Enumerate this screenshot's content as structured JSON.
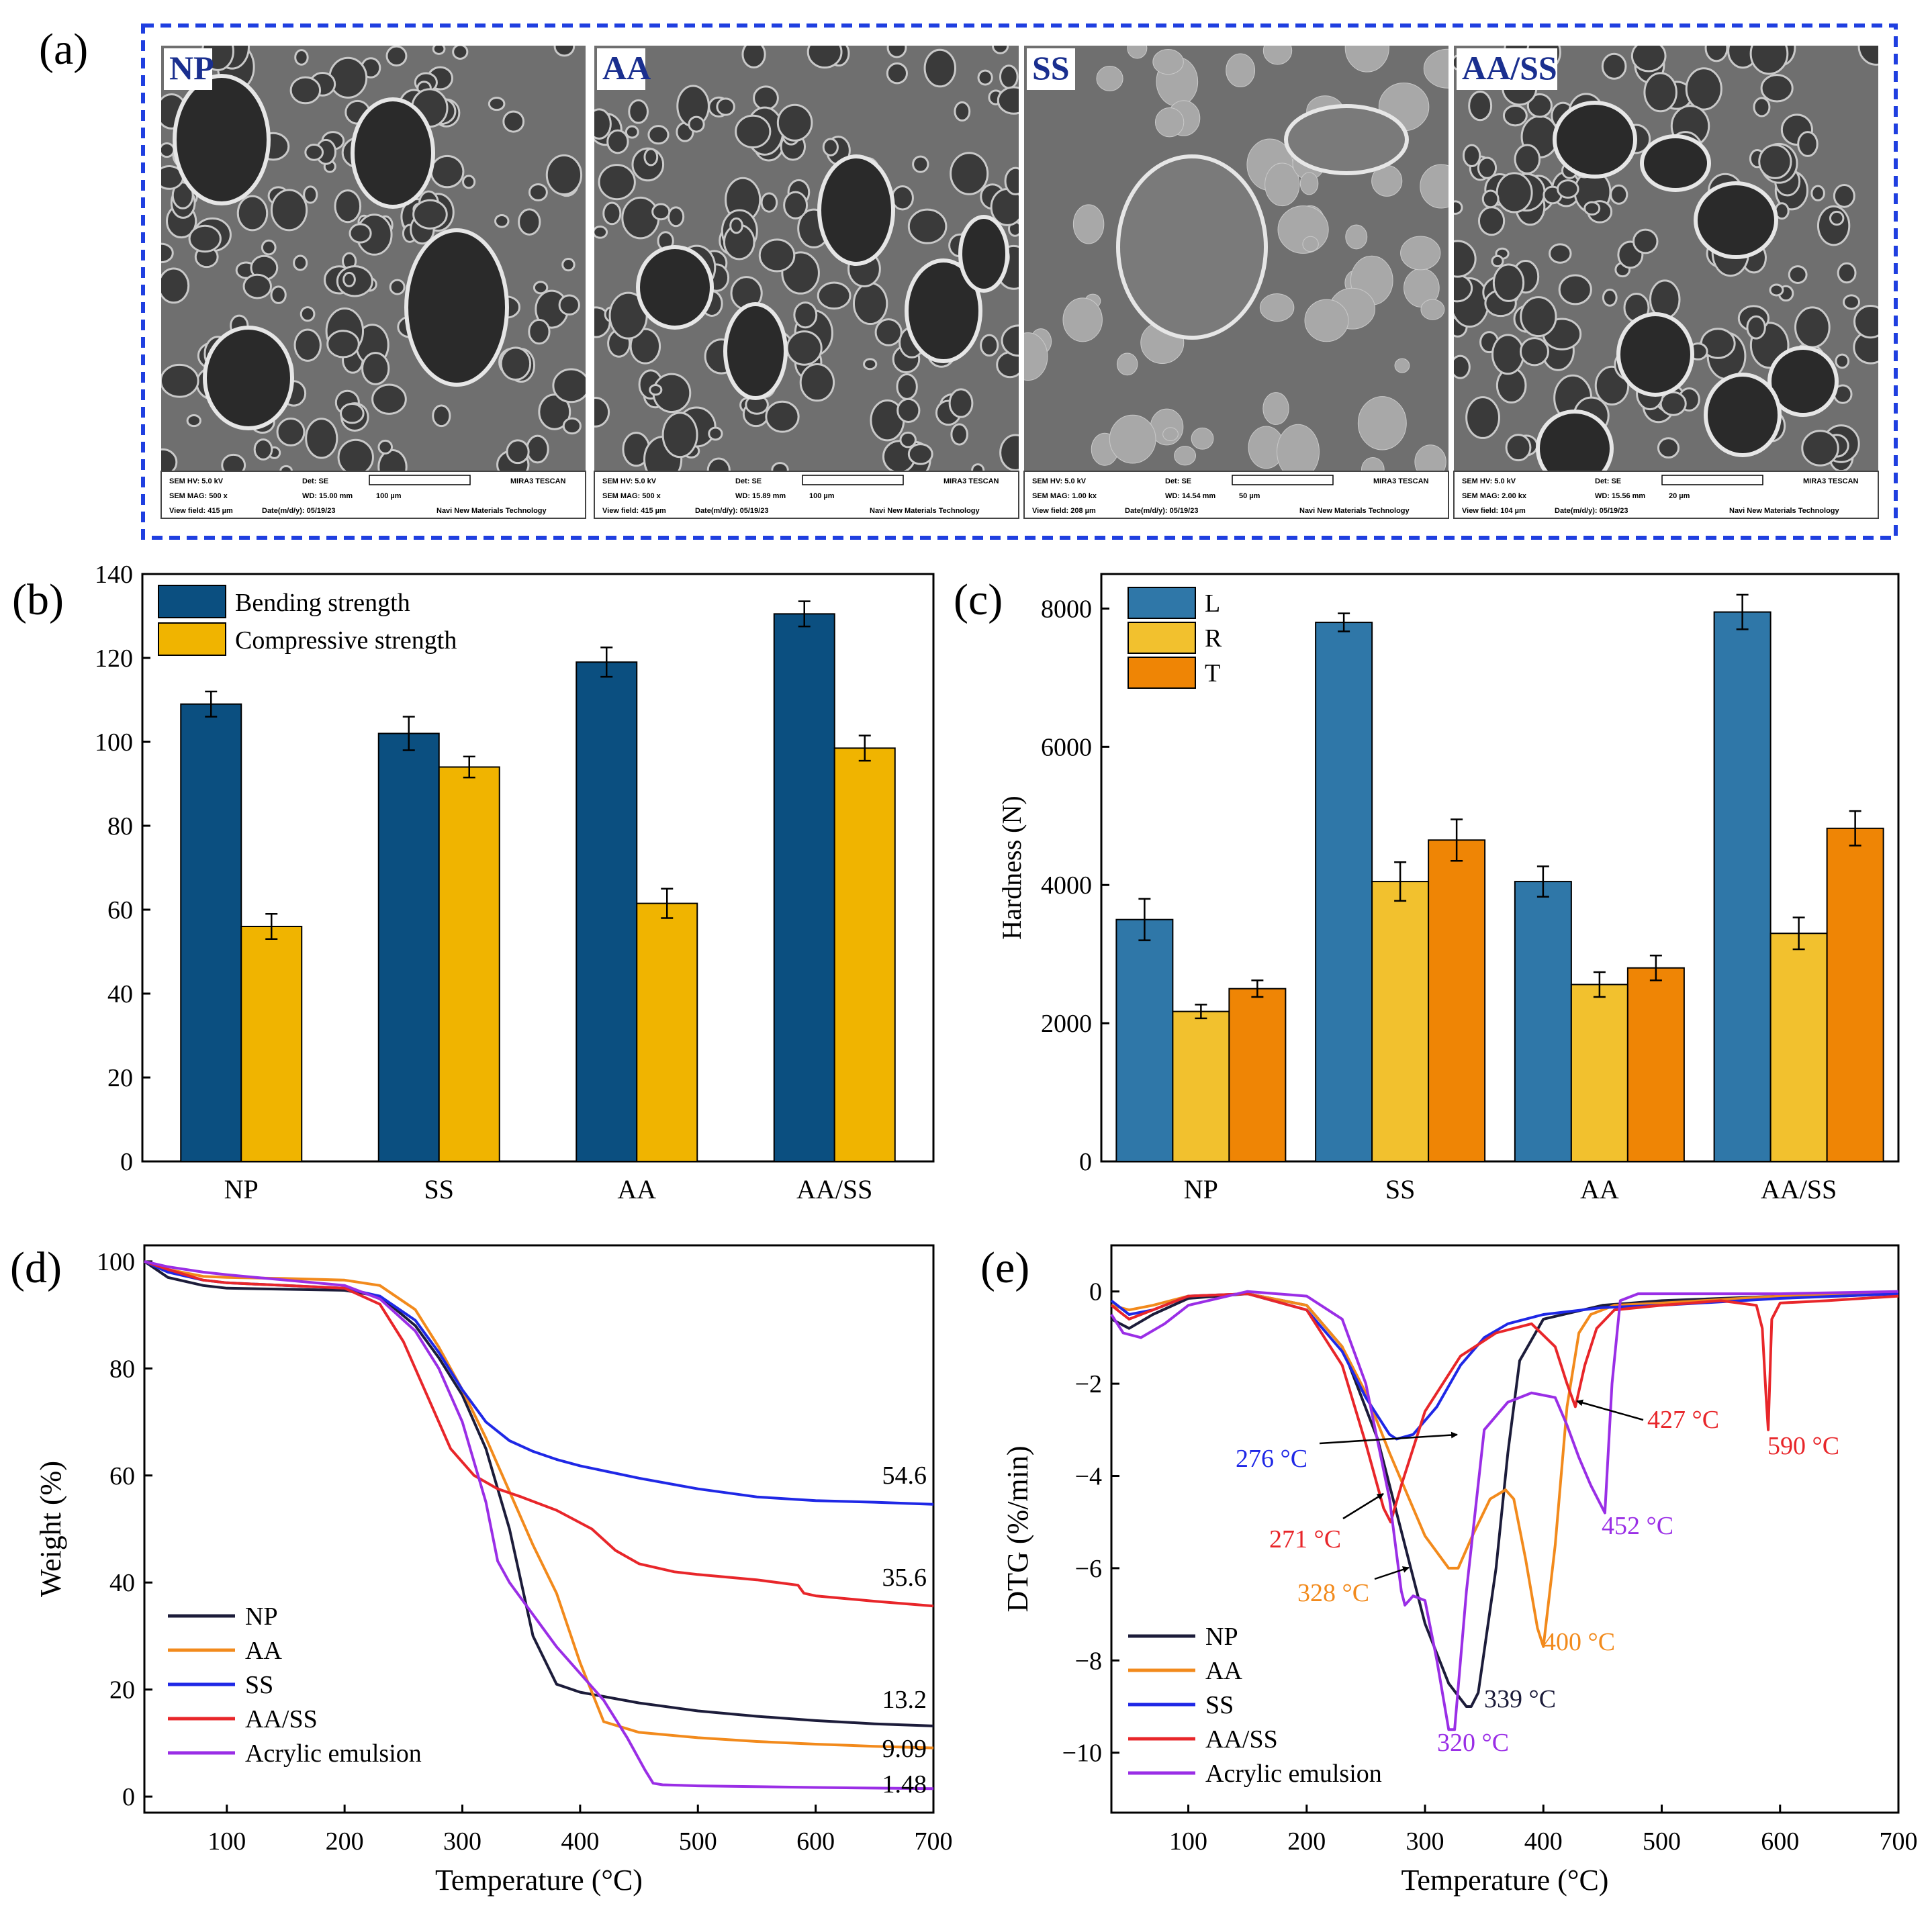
{
  "panel_labels": [
    "(a)",
    "(b)",
    "(c)",
    "(d)",
    "(e)"
  ],
  "colors": {
    "border_blue": "#1f3fe0",
    "sem_tag": "#1a2f8f",
    "bending": "#0b4f80",
    "compressive": "#f0b400",
    "L": "#2f77a8",
    "R": "#f2c12e",
    "T": "#ef8505",
    "NP": "#1c1c3a",
    "AA": "#f28a1c",
    "SS": "#1f28e6",
    "AA/SS": "#e8262a",
    "Acrylic emulsion": "#9a2ee6"
  },
  "sem_panels": [
    {
      "label": "NP",
      "hv": "SEM HV: 5.0 kV",
      "det": "Det: SE",
      "mag": "SEM MAG: 500 x",
      "wd": "WD: 15.00 mm",
      "scale": "100 µm",
      "field": "View field: 415 µm",
      "date": "Date(m/d/y): 05/19/23",
      "brand": "MIRA3 TESCAN",
      "company": "Navi New Materials Technology"
    },
    {
      "label": "AA",
      "hv": "SEM HV: 5.0 kV",
      "det": "Det: SE",
      "mag": "SEM MAG: 500 x",
      "wd": "WD: 15.89 mm",
      "scale": "100 µm",
      "field": "View field: 415 µm",
      "date": "Date(m/d/y): 05/19/23",
      "brand": "MIRA3 TESCAN",
      "company": "Navi New Materials Technology"
    },
    {
      "label": "SS",
      "hv": "SEM HV: 5.0 kV",
      "det": "Det: SE",
      "mag": "SEM MAG: 1.00 kx",
      "wd": "WD: 14.54 mm",
      "scale": "50 µm",
      "field": "View field: 208 µm",
      "date": "Date(m/d/y): 05/19/23",
      "brand": "MIRA3 TESCAN",
      "company": "Navi New Materials Technology"
    },
    {
      "label": "AA/SS",
      "hv": "SEM HV: 5.0 kV",
      "det": "Det: SE",
      "mag": "SEM MAG: 2.00 kx",
      "wd": "WD: 15.56 mm",
      "scale": "20 µm",
      "field": "View field: 104 µm",
      "date": "Date(m/d/y): 05/19/23",
      "brand": "MIRA3 TESCAN",
      "company": "Navi New Materials Technology"
    }
  ],
  "chart_data": [
    {
      "id": "b",
      "type": "bar",
      "categories": [
        "NP",
        "SS",
        "AA",
        "AA/SS"
      ],
      "series": [
        {
          "name": "Bending strength",
          "values": [
            109,
            102,
            119,
            130.5
          ],
          "errors": [
            3,
            4,
            3.5,
            3
          ]
        },
        {
          "name": "Compressive strength",
          "values": [
            56,
            94,
            61.5,
            98.5
          ],
          "errors": [
            3,
            2.5,
            3.5,
            3
          ]
        }
      ],
      "ylim": [
        0,
        140
      ],
      "yticks": [
        "0",
        "20",
        "40",
        "60",
        "80",
        "100",
        "120",
        "140"
      ],
      "xlabel": "",
      "ylabel": "",
      "legend": "top-left"
    },
    {
      "id": "c",
      "type": "bar",
      "categories": [
        "NP",
        "SS",
        "AA",
        "AA/SS"
      ],
      "series": [
        {
          "name": "L",
          "values": [
            3500,
            7800,
            4050,
            7950
          ],
          "errors": [
            300,
            130,
            220,
            250
          ]
        },
        {
          "name": "R",
          "values": [
            2170,
            4050,
            2560,
            3300
          ],
          "errors": [
            100,
            280,
            180,
            230
          ]
        },
        {
          "name": "T",
          "values": [
            2500,
            4650,
            2800,
            4820
          ],
          "errors": [
            120,
            300,
            180,
            250
          ]
        }
      ],
      "ylim": [
        0,
        8500
      ],
      "yticks": [
        "0",
        "2000",
        "4000",
        "6000",
        "8000"
      ],
      "xlabel": "",
      "ylabel": "Hardness (N)",
      "legend": "top-left"
    },
    {
      "id": "d",
      "type": "line",
      "xlabel": "Temperature (°C)",
      "ylabel": "Weight (%)",
      "xlim": [
        30,
        700
      ],
      "ylim": [
        -3,
        103
      ],
      "xticks": [
        "100",
        "200",
        "300",
        "400",
        "500",
        "600",
        "700"
      ],
      "yticks": [
        "0",
        "20",
        "40",
        "60",
        "80",
        "100"
      ],
      "legend": "bottom-left",
      "series": [
        {
          "name": "NP",
          "x": [
            30,
            50,
            80,
            100,
            150,
            200,
            230,
            260,
            280,
            300,
            320,
            340,
            360,
            380,
            400,
            450,
            500,
            550,
            600,
            650,
            700
          ],
          "y": [
            100,
            97,
            95.5,
            95,
            94.8,
            94.6,
            93.5,
            88,
            82,
            75,
            65,
            50,
            30,
            21,
            19.5,
            17.5,
            16,
            15,
            14.2,
            13.6,
            13.2
          ]
        },
        {
          "name": "AA",
          "x": [
            30,
            50,
            80,
            100,
            150,
            200,
            230,
            260,
            280,
            300,
            320,
            340,
            360,
            380,
            400,
            420,
            450,
            500,
            550,
            600,
            650,
            700
          ],
          "y": [
            100,
            98.5,
            97.2,
            97,
            96.8,
            96.5,
            95.5,
            91,
            84,
            76,
            67,
            57,
            47,
            38,
            25,
            14,
            12,
            11,
            10.3,
            9.8,
            9.4,
            9.09
          ]
        },
        {
          "name": "SS",
          "x": [
            30,
            50,
            80,
            100,
            150,
            200,
            230,
            260,
            280,
            300,
            320,
            340,
            360,
            380,
            400,
            450,
            500,
            550,
            600,
            650,
            700
          ],
          "y": [
            100,
            98,
            96.5,
            96,
            95.5,
            95,
            93.5,
            89,
            83,
            76,
            70,
            66.5,
            64.5,
            63,
            61.8,
            59.5,
            57.5,
            56,
            55.3,
            55,
            54.6
          ]
        },
        {
          "name": "AA/SS",
          "x": [
            30,
            50,
            80,
            100,
            150,
            200,
            230,
            250,
            270,
            290,
            310,
            330,
            350,
            380,
            410,
            430,
            450,
            480,
            500,
            550,
            585,
            590,
            600,
            650,
            700
          ],
          "y": [
            100,
            98.5,
            96.5,
            96,
            95.5,
            95,
            92,
            85,
            75,
            65,
            60,
            57.5,
            56,
            53.5,
            50,
            46,
            43.5,
            42,
            41.5,
            40.5,
            39.5,
            38,
            37.5,
            36.5,
            35.6
          ]
        },
        {
          "name": "Acrylic emulsion",
          "x": [
            30,
            50,
            80,
            100,
            150,
            200,
            230,
            260,
            280,
            300,
            320,
            330,
            340,
            360,
            380,
            400,
            420,
            440,
            455,
            462,
            470,
            500,
            600,
            700
          ],
          "y": [
            100,
            99,
            98,
            97.5,
            96.5,
            95.5,
            93,
            87,
            80,
            70,
            55,
            44,
            40,
            34,
            28,
            23,
            18,
            11,
            5,
            2.5,
            2.2,
            2,
            1.7,
            1.48
          ]
        }
      ],
      "end_labels": [
        "54.6",
        "35.6",
        "13.2",
        "9.09",
        "1.48"
      ]
    },
    {
      "id": "e",
      "type": "line",
      "xlabel": "Temperature (°C)",
      "ylabel": "DTG (%/min)",
      "xlim": [
        35,
        700
      ],
      "ylim": [
        -11.3,
        1.0
      ],
      "xticks": [
        "100",
        "200",
        "300",
        "400",
        "500",
        "600",
        "700"
      ],
      "yticks": [
        "0",
        "-2",
        "-4",
        "-6",
        "-8",
        "-10"
      ],
      "legend": "bottom-left",
      "series": [
        {
          "name": "NP",
          "x": [
            35,
            50,
            70,
            100,
            150,
            200,
            230,
            260,
            280,
            300,
            320,
            335,
            339,
            345,
            360,
            370,
            380,
            400,
            450,
            500,
            550,
            600,
            650,
            700
          ],
          "y": [
            -0.6,
            -0.8,
            -0.5,
            -0.15,
            -0.05,
            -0.3,
            -1.2,
            -3.2,
            -5.2,
            -7.2,
            -8.5,
            -9.0,
            -9.0,
            -8.7,
            -6.0,
            -3.5,
            -1.5,
            -0.6,
            -0.3,
            -0.2,
            -0.15,
            -0.1,
            -0.1,
            -0.05
          ]
        },
        {
          "name": "AA",
          "x": [
            35,
            50,
            70,
            100,
            150,
            200,
            230,
            250,
            270,
            300,
            320,
            328,
            340,
            355,
            368,
            375,
            385,
            395,
            400,
            410,
            420,
            430,
            440,
            460,
            500,
            600,
            700
          ],
          "y": [
            -0.3,
            -0.4,
            -0.3,
            -0.1,
            -0.05,
            -0.3,
            -1.2,
            -2.2,
            -3.5,
            -5.3,
            -6.0,
            -6.0,
            -5.3,
            -4.5,
            -4.3,
            -4.5,
            -5.8,
            -7.3,
            -7.7,
            -5.5,
            -2.5,
            -0.9,
            -0.5,
            -0.3,
            -0.25,
            -0.1,
            -0.05
          ]
        },
        {
          "name": "SS",
          "x": [
            35,
            50,
            70,
            100,
            150,
            200,
            230,
            250,
            270,
            276,
            290,
            310,
            330,
            350,
            370,
            400,
            450,
            500,
            600,
            700
          ],
          "y": [
            -0.2,
            -0.5,
            -0.4,
            -0.1,
            -0.05,
            -0.4,
            -1.3,
            -2.3,
            -3.1,
            -3.2,
            -3.1,
            -2.5,
            -1.6,
            -1.0,
            -0.7,
            -0.5,
            -0.35,
            -0.3,
            -0.15,
            -0.05
          ]
        },
        {
          "name": "AA/SS",
          "x": [
            35,
            50,
            70,
            100,
            150,
            200,
            230,
            250,
            265,
            271,
            280,
            300,
            330,
            360,
            390,
            410,
            420,
            427,
            435,
            445,
            460,
            500,
            550,
            580,
            585,
            588,
            590,
            593,
            600,
            640,
            700
          ],
          "y": [
            -0.3,
            -0.6,
            -0.4,
            -0.1,
            -0.05,
            -0.4,
            -1.6,
            -3.3,
            -4.7,
            -5.0,
            -4.2,
            -2.6,
            -1.4,
            -0.9,
            -0.7,
            -1.2,
            -2.0,
            -2.5,
            -1.6,
            -0.8,
            -0.4,
            -0.3,
            -0.2,
            -0.3,
            -0.8,
            -2.2,
            -3.0,
            -0.6,
            -0.25,
            -0.2,
            -0.1
          ]
        },
        {
          "name": "Acrylic emulsion",
          "x": [
            35,
            45,
            60,
            80,
            100,
            150,
            200,
            230,
            250,
            270,
            280,
            283,
            290,
            300,
            310,
            320,
            325,
            335,
            350,
            370,
            390,
            410,
            420,
            430,
            440,
            452,
            458,
            465,
            480,
            520,
            600,
            700
          ],
          "y": [
            -0.5,
            -0.9,
            -1.0,
            -0.7,
            -0.3,
            0.0,
            -0.1,
            -0.6,
            -2.0,
            -4.5,
            -6.5,
            -6.8,
            -6.6,
            -6.7,
            -8.0,
            -9.5,
            -9.5,
            -6.5,
            -3.0,
            -2.4,
            -2.2,
            -2.3,
            -2.9,
            -3.6,
            -4.2,
            -4.8,
            -2.0,
            -0.2,
            -0.05,
            -0.05,
            -0.05,
            0.0
          ]
        }
      ],
      "annotations": [
        {
          "text": "276 °C",
          "series": "SS"
        },
        {
          "text": "271 °C",
          "series": "AA/SS"
        },
        {
          "text": "328 °C",
          "series": "AA"
        },
        {
          "text": "339 °C",
          "series": "NP"
        },
        {
          "text": "320 °C",
          "series": "Acrylic emulsion"
        },
        {
          "text": "400 °C",
          "series": "AA"
        },
        {
          "text": "427 °C",
          "series": "AA/SS"
        },
        {
          "text": "452 °C",
          "series": "Acrylic emulsion"
        },
        {
          "text": "590 °C",
          "series": "AA/SS"
        }
      ]
    }
  ]
}
